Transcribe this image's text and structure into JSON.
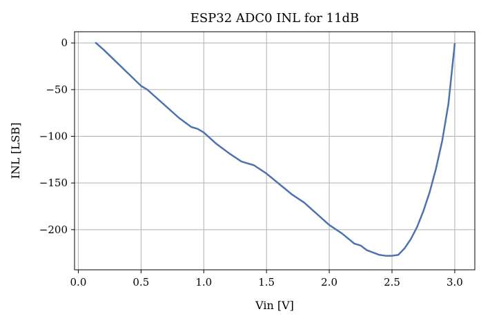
{
  "chart_data": {
    "type": "line",
    "title": "ESP32 ADC0 INL for 11dB",
    "xlabel": "Vin [V]",
    "ylabel": "INL [LSB]",
    "xlim": [
      -0.03,
      3.16
    ],
    "ylim": [
      -243,
      12
    ],
    "x_ticks": [
      0.0,
      0.5,
      1.0,
      1.5,
      2.0,
      2.5,
      3.0
    ],
    "x_tick_labels": [
      "0.0",
      "0.5",
      "1.0",
      "1.5",
      "2.0",
      "2.5",
      "3.0"
    ],
    "y_ticks": [
      0,
      -50,
      -100,
      -150,
      -200
    ],
    "y_tick_labels": [
      "0",
      "−50",
      "−100",
      "−150",
      "−200"
    ],
    "grid": true,
    "series": [
      {
        "color": "#4c72b0",
        "x": [
          0.14,
          0.2,
          0.3,
          0.4,
          0.5,
          0.55,
          0.6,
          0.7,
          0.8,
          0.9,
          0.95,
          1.0,
          1.1,
          1.2,
          1.3,
          1.4,
          1.5,
          1.6,
          1.7,
          1.8,
          1.9,
          2.0,
          2.1,
          2.2,
          2.25,
          2.3,
          2.4,
          2.45,
          2.5,
          2.55,
          2.6,
          2.65,
          2.7,
          2.75,
          2.8,
          2.85,
          2.9,
          2.95,
          3.0
        ],
        "y": [
          0,
          -7,
          -20,
          -33,
          -46,
          -50,
          -56,
          -68,
          -80,
          -90,
          -92,
          -96,
          -108,
          -118,
          -127,
          -131,
          -140,
          -151,
          -162,
          -171,
          -183,
          -195,
          -204,
          -215,
          -217,
          -222,
          -227,
          -228,
          -228,
          -227,
          -220,
          -210,
          -197,
          -180,
          -160,
          -135,
          -105,
          -65,
          -1
        ]
      }
    ]
  }
}
